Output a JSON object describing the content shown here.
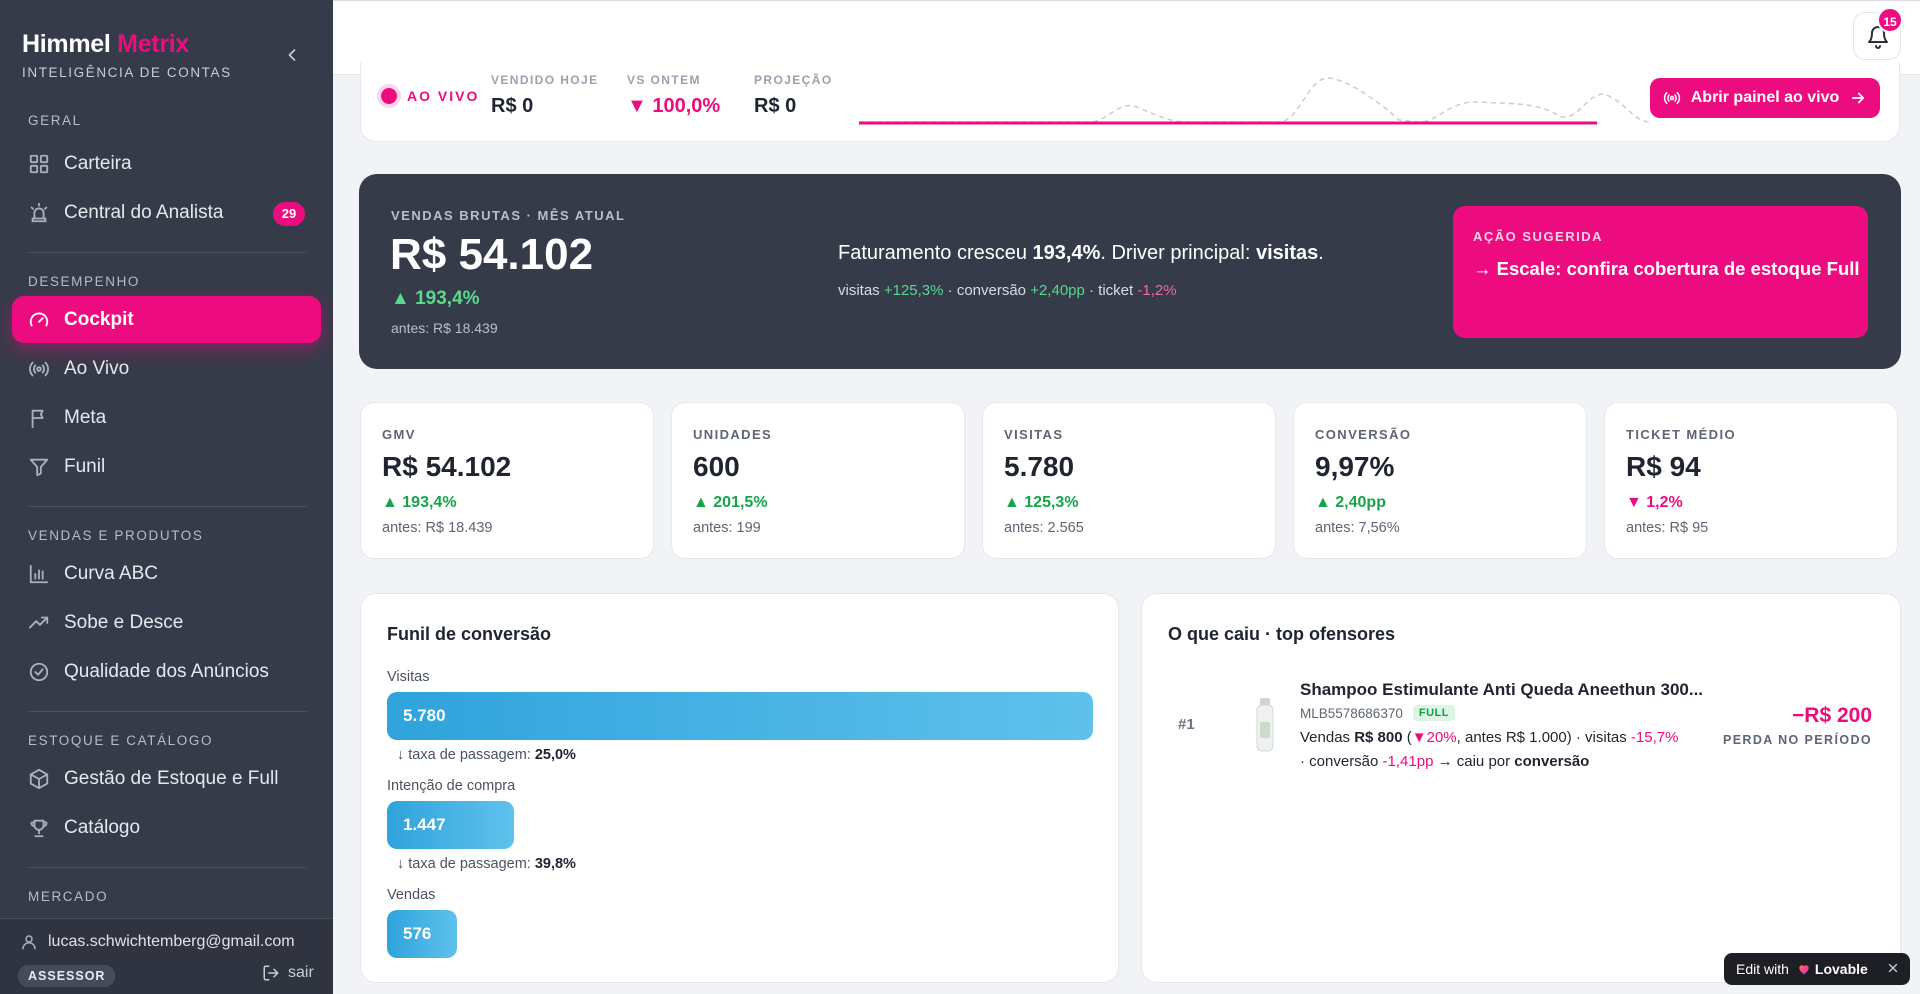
{
  "brand": {
    "name_part1": "Himmel",
    "name_part2": "Metrix",
    "subtitle": "INTELIGÊNCIA DE CONTAS"
  },
  "sidebar": {
    "sections": [
      {
        "title": "GERAL",
        "items": [
          {
            "label": "Carteira",
            "icon": "grid-icon"
          },
          {
            "label": "Central do Analista",
            "icon": "siren-icon",
            "badge": "29"
          }
        ]
      },
      {
        "title": "DESEMPENHO",
        "items": [
          {
            "label": "Cockpit",
            "icon": "gauge-icon",
            "active": true
          },
          {
            "label": "Ao Vivo",
            "icon": "radio-icon"
          },
          {
            "label": "Meta",
            "icon": "flag-icon"
          },
          {
            "label": "Funil",
            "icon": "filter-icon"
          }
        ]
      },
      {
        "title": "VENDAS E PRODUTOS",
        "items": [
          {
            "label": "Curva ABC",
            "icon": "bar-chart-icon"
          },
          {
            "label": "Sobe e Desce",
            "icon": "trending-up-icon"
          },
          {
            "label": "Qualidade dos Anúncios",
            "icon": "check-circle-icon"
          }
        ]
      },
      {
        "title": "ESTOQUE E CATÁLOGO",
        "items": [
          {
            "label": "Gestão de Estoque e Full",
            "icon": "box-icon"
          },
          {
            "label": "Catálogo",
            "icon": "trophy-icon"
          }
        ]
      },
      {
        "title": "MERCADO",
        "items": []
      }
    ],
    "user": {
      "email": "lucas.schwichtemberg@gmail.com",
      "role": "ASSESSOR",
      "logout": "sair"
    }
  },
  "topbar": {
    "notifications": "15"
  },
  "live": {
    "label": "AO VIVO",
    "sold_today_label": "VENDIDO HOJE",
    "sold_today": "R$ 0",
    "vs_yesterday_label": "VS ONTEM",
    "vs_yesterday": "▼ 100,0%",
    "projection_label": "PROJEÇÃO",
    "projection": "R$ 0",
    "button": "Abrir painel ao vivo"
  },
  "hero": {
    "label": "VENDAS BRUTAS · MÊS ATUAL",
    "value": "R$ 54.102",
    "delta": "▲ 193,4%",
    "before": "antes: R$ 18.439",
    "msg_prefix": "Faturamento cresceu ",
    "msg_pct": "193,4%",
    "msg_mid": ". Driver principal: ",
    "msg_driver": "visitas",
    "msg_end": ".",
    "drv_visits_label": "visitas ",
    "drv_visits": "+125,3%",
    "drv_sep1": " · conversão ",
    "drv_conv": "+2,40pp",
    "drv_sep2": " · ticket ",
    "drv_ticket": "-1,2%",
    "action_label": "AÇÃO SUGERIDA",
    "action_text": "→ Escale: confira cobertura de estoque Full"
  },
  "kpis": [
    {
      "label": "GMV",
      "value": "R$ 54.102",
      "delta": "▲ 193,4%",
      "trend": "up",
      "before": "antes: R$ 18.439"
    },
    {
      "label": "UNIDADES",
      "value": "600",
      "delta": "▲ 201,5%",
      "trend": "up",
      "before": "antes: 199"
    },
    {
      "label": "VISITAS",
      "value": "5.780",
      "delta": "▲ 125,3%",
      "trend": "up",
      "before": "antes: 2.565"
    },
    {
      "label": "CONVERSÃO",
      "value": "9,97%",
      "delta": "▲ 2,40pp",
      "trend": "up",
      "before": "antes: 7,56%"
    },
    {
      "label": "TICKET MÉDIO",
      "value": "R$ 94",
      "delta": "▼ 1,2%",
      "trend": "down",
      "before": "antes: R$ 95"
    }
  ],
  "funnel": {
    "title": "Funil de conversão",
    "stages": [
      {
        "label": "Visitas",
        "value": "5.780",
        "share": 1.0
      },
      {
        "label": "Intenção de compra",
        "value": "1.447",
        "share": 0.25
      },
      {
        "label": "Vendas",
        "value": "576",
        "share": 0.1
      }
    ],
    "rate_prefix": "↓ taxa de passagem: ",
    "rates": [
      "25,0%",
      "39,8%"
    ]
  },
  "offenders": {
    "title": "O que caiu · top ofensores",
    "items": [
      {
        "rank": "#1",
        "name": "Shampoo Estimulante Anti Queda Aneethun 300...",
        "id": "MLB5578686370",
        "tag": "FULL",
        "sales_label": "Vendas ",
        "sales_value": "R$ 800",
        "open_paren": " (",
        "sales_delta": "▼20%",
        "sales_rest": ", antes R$ 1.000) · visitas ",
        "visits_delta": "-15,7%",
        "conv_label": "· conversão ",
        "conv_delta": "-1,41pp",
        "cause_label": " → caiu por ",
        "cause": "conversão",
        "loss": "−R$ 200",
        "loss_label": "PERDA NO PERÍODO"
      }
    ]
  },
  "toast": {
    "prefix": "Edit with",
    "brand": "Lovable"
  },
  "colors": {
    "accent": "#ec0c80",
    "sidebar": "#353b48",
    "positive": "#17a34a",
    "funnel": "#2fa3dc"
  }
}
